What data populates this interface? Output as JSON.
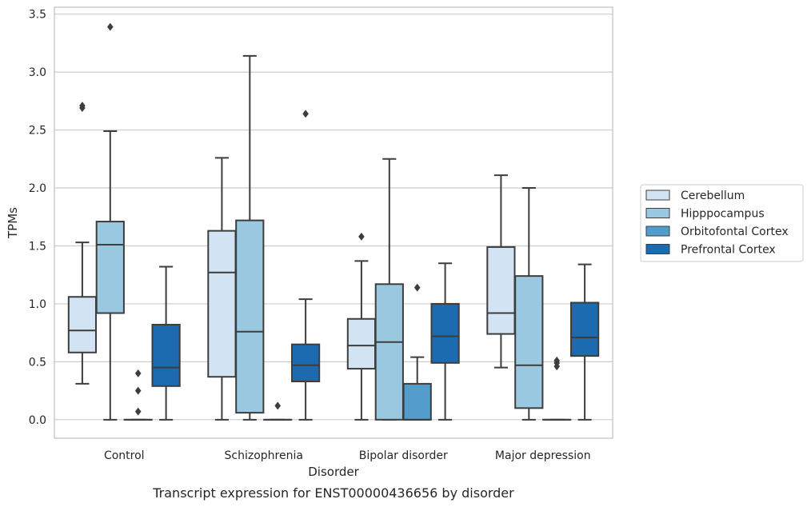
{
  "chart_data": {
    "type": "box",
    "caption": "Transcript expression for ENST00000436656 by disorder",
    "xlabel": "Disorder",
    "ylabel": "TPMs",
    "ylim": [
      -0.16,
      3.56
    ],
    "yticks": [
      "0.0",
      "0.5",
      "1.0",
      "1.5",
      "2.0",
      "2.5",
      "3.0",
      "3.5"
    ],
    "grid": true,
    "legend_position": "right",
    "categories": [
      "Control",
      "Schizophrenia",
      "Bipolar disorder",
      "Major depression"
    ],
    "series": [
      {
        "name": "Cerebellum",
        "color": "#d2e3f3",
        "boxes": [
          {
            "whislo": 0.31,
            "q1": 0.58,
            "med": 0.77,
            "q3": 1.06,
            "whishi": 1.53,
            "fliers": [
              2.69,
              2.71
            ]
          },
          {
            "whislo": 0.0,
            "q1": 0.37,
            "med": 1.27,
            "q3": 1.63,
            "whishi": 2.26,
            "fliers": []
          },
          {
            "whislo": 0.0,
            "q1": 0.44,
            "med": 0.64,
            "q3": 0.87,
            "whishi": 1.37,
            "fliers": [
              1.58
            ]
          },
          {
            "whislo": 0.45,
            "q1": 0.74,
            "med": 0.92,
            "q3": 1.49,
            "whishi": 2.11,
            "fliers": []
          }
        ]
      },
      {
        "name": "Hipppocampus",
        "color": "#9ac8e0",
        "boxes": [
          {
            "whislo": 0.0,
            "q1": 0.92,
            "med": 1.51,
            "q3": 1.71,
            "whishi": 2.49,
            "fliers": [
              3.39
            ]
          },
          {
            "whislo": 0.0,
            "q1": 0.06,
            "med": 0.76,
            "q3": 1.72,
            "whishi": 3.14,
            "fliers": []
          },
          {
            "whislo": 0.0,
            "q1": 0.0,
            "med": 0.67,
            "q3": 1.17,
            "whishi": 2.25,
            "fliers": []
          },
          {
            "whislo": 0.0,
            "q1": 0.1,
            "med": 0.47,
            "q3": 1.24,
            "whishi": 2.0,
            "fliers": []
          }
        ]
      },
      {
        "name": "Orbitofontal Cortex",
        "color": "#529dcc",
        "boxes": [
          {
            "whislo": 0.0,
            "q1": 0.0,
            "med": 0.0,
            "q3": 0.0,
            "whishi": 0.0,
            "fliers": [
              0.07,
              0.25,
              0.4
            ]
          },
          {
            "whislo": 0.0,
            "q1": 0.0,
            "med": 0.0,
            "q3": 0.0,
            "whishi": 0.0,
            "fliers": [
              0.12
            ]
          },
          {
            "whislo": 0.0,
            "q1": 0.0,
            "med": 0.0,
            "q3": 0.31,
            "whishi": 0.54,
            "fliers": [
              1.14
            ]
          },
          {
            "whislo": 0.0,
            "q1": 0.0,
            "med": 0.0,
            "q3": 0.0,
            "whishi": 0.0,
            "fliers": [
              0.46,
              0.49,
              0.51
            ]
          }
        ]
      },
      {
        "name": "Prefrontal Cortex",
        "color": "#1c6aaf",
        "boxes": [
          {
            "whislo": 0.0,
            "q1": 0.29,
            "med": 0.45,
            "q3": 0.82,
            "whishi": 1.32,
            "fliers": []
          },
          {
            "whislo": 0.0,
            "q1": 0.33,
            "med": 0.47,
            "q3": 0.65,
            "whishi": 1.04,
            "fliers": [
              2.64
            ]
          },
          {
            "whislo": 0.0,
            "q1": 0.49,
            "med": 0.72,
            "q3": 1.0,
            "whishi": 1.35,
            "fliers": []
          },
          {
            "whislo": 0.0,
            "q1": 0.55,
            "med": 0.71,
            "q3": 1.01,
            "whishi": 1.34,
            "fliers": []
          }
        ]
      }
    ]
  }
}
